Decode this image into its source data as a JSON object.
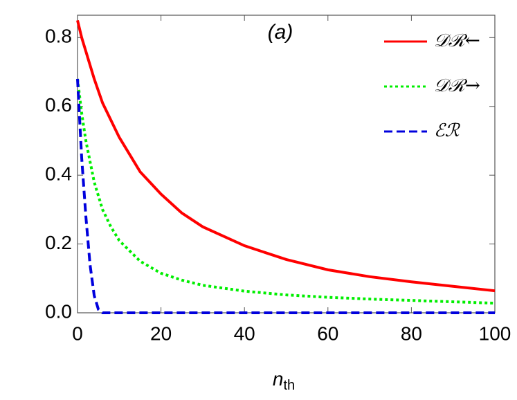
{
  "chart_data": {
    "type": "line",
    "annotation": "(a)",
    "x_label": {
      "main": "n",
      "sub": "th"
    },
    "x": [
      0,
      1,
      2,
      3,
      4,
      5,
      6,
      8,
      10,
      15,
      20,
      25,
      30,
      40,
      50,
      60,
      70,
      80,
      90,
      100
    ],
    "series": [
      {
        "name": "𝒟ℛ←",
        "color": "#ff0000",
        "dash": "solid",
        "values": [
          0.85,
          0.8,
          0.76,
          0.72,
          0.68,
          0.645,
          0.61,
          0.56,
          0.51,
          0.41,
          0.345,
          0.29,
          0.25,
          0.195,
          0.155,
          0.125,
          0.105,
          0.09,
          0.077,
          0.064
        ]
      },
      {
        "name": "𝒟ℛ→",
        "color": "#00ee00",
        "dash": "dotted",
        "values": [
          0.68,
          0.58,
          0.5,
          0.44,
          0.38,
          0.34,
          0.3,
          0.25,
          0.21,
          0.15,
          0.115,
          0.095,
          0.08,
          0.063,
          0.052,
          0.045,
          0.04,
          0.036,
          0.032,
          0.028
        ]
      },
      {
        "name": "ℰℛ",
        "color": "#0000dd",
        "dash": "dashed",
        "values": [
          0.68,
          0.45,
          0.28,
          0.14,
          0.05,
          0.01,
          0,
          0,
          0,
          0,
          0,
          0,
          0,
          0,
          0,
          0,
          0,
          0,
          0,
          0
        ]
      }
    ],
    "xlim": [
      0,
      100
    ],
    "xticks": [
      0,
      20,
      40,
      60,
      80,
      100
    ],
    "ylim": [
      0,
      0.865
    ],
    "yticks": [
      {
        "value": 0,
        "label": "0.0"
      },
      0.2,
      0.4,
      0.6,
      0.8
    ],
    "legend": "top-right"
  }
}
